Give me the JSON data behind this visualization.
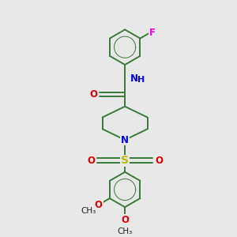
{
  "bg_color": "#e8e8e8",
  "bond_color": "#3a7a3a",
  "bond_width": 1.4,
  "atom_colors": {
    "N": "#0000ee",
    "O": "#dd0000",
    "S": "#bbbb00",
    "F": "#ee00ee",
    "C": "#222222"
  },
  "font_size": 8.5,
  "figsize": [
    3.0,
    3.0
  ],
  "dpi": 100,
  "xlim": [
    0,
    10
  ],
  "ylim": [
    0,
    10.5
  ]
}
